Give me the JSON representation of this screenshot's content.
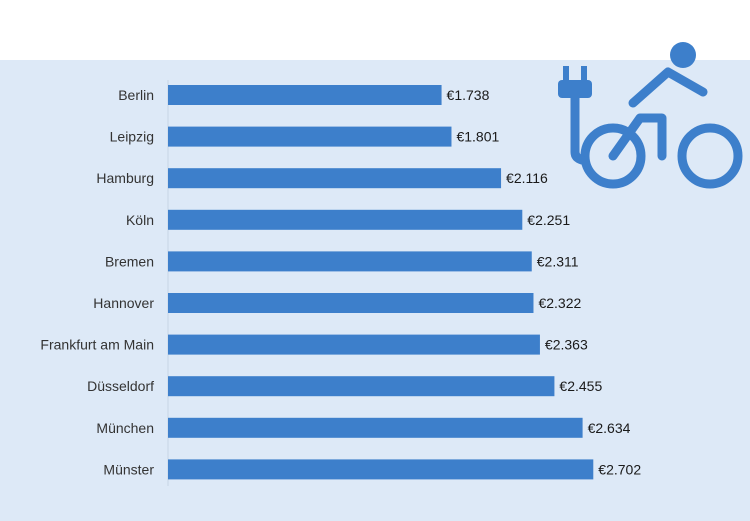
{
  "chart_data": {
    "type": "bar",
    "orientation": "horizontal",
    "title": "",
    "xlabel": "",
    "ylabel": "",
    "categories": [
      "Berlin",
      "Leipzig",
      "Hamburg",
      "Köln",
      "Bremen",
      "Hannover",
      "Frankfurt am Main",
      "Düsseldorf",
      "München",
      "Münster"
    ],
    "values": [
      1738,
      1801,
      2116,
      2251,
      2311,
      2322,
      2363,
      2455,
      2634,
      2702
    ],
    "value_labels": [
      "€1.738",
      "€1.801",
      "€2.116",
      "€2.251",
      "€2.311",
      "€2.322",
      "€2.363",
      "€2.455",
      "€2.634",
      "€2.702"
    ],
    "xlim": [
      0,
      3000
    ],
    "grid": false,
    "legend": "none",
    "colors": {
      "bar": "#3d7fcb",
      "background": "#dde9f7",
      "icon": "#3d7fcb"
    },
    "icon": "electric-bike-plug-icon"
  }
}
